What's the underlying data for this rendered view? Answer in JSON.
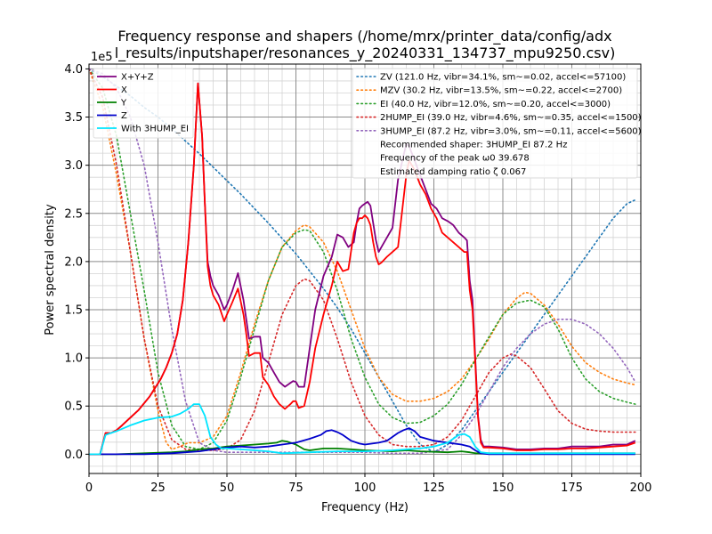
{
  "chart_data": {
    "type": "line",
    "title_line1": "Frequency response and shapers (/home/mrx/printer_data/config/adx",
    "title_line2": "l_results/inputshaper/resonances_y_20240331_134737_mpu9250.csv)",
    "xlabel": "Frequency (Hz)",
    "ylabel": "Power spectral density",
    "y_offset_text": "1e5",
    "xlim": [
      0,
      200
    ],
    "ylim": [
      -0.2,
      4.05
    ],
    "y_scale": 100000,
    "x_ticks": [
      0,
      25,
      50,
      75,
      100,
      125,
      150,
      175,
      200
    ],
    "y_ticks": [
      0.0,
      0.5,
      1.0,
      1.5,
      2.0,
      2.5,
      3.0,
      3.5,
      4.0
    ],
    "x_minor_step": 5,
    "y_minor_step": 0.125,
    "grid": "major and minor",
    "legend_left_position": "upper left",
    "legend_right_position": "upper right",
    "series": [
      {
        "name": "X+Y+Z",
        "color": "#800080",
        "style": "solid",
        "x": [
          0,
          4,
          6,
          8,
          10,
          12,
          15,
          18,
          22,
          26,
          28,
          30,
          32,
          34,
          36,
          38,
          39.5,
          41,
          42,
          43,
          44,
          45,
          47,
          49,
          50,
          52,
          54,
          56,
          57,
          58,
          60,
          62,
          63,
          65,
          67,
          69,
          71,
          73,
          74,
          75,
          76,
          78,
          80,
          82,
          85,
          88,
          90,
          92,
          94,
          96,
          97,
          98,
          99,
          100,
          101,
          102,
          103,
          104,
          105,
          106,
          108,
          110,
          112,
          114,
          115,
          116,
          118,
          120,
          122,
          124,
          126,
          128,
          130,
          132,
          134,
          136,
          137,
          138,
          139,
          140,
          141,
          142,
          143,
          145,
          150,
          155,
          160,
          165,
          170,
          175,
          180,
          185,
          190,
          195,
          198
        ],
        "y": [
          0,
          0,
          0.22,
          0.22,
          0.25,
          0.3,
          0.38,
          0.46,
          0.6,
          0.78,
          0.9,
          1.05,
          1.25,
          1.6,
          2.2,
          3.0,
          3.85,
          3.3,
          2.6,
          2.0,
          1.85,
          1.75,
          1.65,
          1.5,
          1.55,
          1.7,
          1.88,
          1.6,
          1.4,
          1.2,
          1.22,
          1.22,
          1.0,
          0.95,
          0.85,
          0.75,
          0.7,
          0.74,
          0.76,
          0.75,
          0.7,
          0.7,
          1.1,
          1.5,
          1.85,
          2.05,
          2.28,
          2.25,
          2.15,
          2.2,
          2.4,
          2.55,
          2.58,
          2.6,
          2.62,
          2.58,
          2.4,
          2.22,
          2.1,
          2.15,
          2.25,
          2.35,
          2.85,
          3.1,
          3.22,
          3.2,
          3.05,
          2.9,
          2.75,
          2.6,
          2.55,
          2.45,
          2.42,
          2.38,
          2.3,
          2.25,
          2.22,
          1.8,
          1.6,
          1.0,
          0.4,
          0.15,
          0.08,
          0.08,
          0.07,
          0.05,
          0.05,
          0.06,
          0.06,
          0.08,
          0.08,
          0.08,
          0.1,
          0.1,
          0.14
        ]
      },
      {
        "name": "X",
        "color": "#ff0000",
        "style": "solid",
        "x": [
          0,
          4,
          6,
          8,
          10,
          12,
          15,
          18,
          22,
          26,
          28,
          30,
          32,
          34,
          36,
          38,
          39.5,
          41,
          42,
          43,
          44,
          45,
          47,
          49,
          50,
          52,
          54,
          56,
          57,
          58,
          60,
          62,
          63,
          65,
          67,
          69,
          71,
          73,
          74,
          75,
          76,
          78,
          80,
          82,
          85,
          88,
          90,
          92,
          94,
          96,
          97,
          98,
          99,
          100,
          101,
          102,
          103,
          104,
          105,
          106,
          108,
          110,
          112,
          114,
          115,
          116,
          118,
          120,
          122,
          124,
          126,
          128,
          130,
          132,
          134,
          136,
          137,
          138,
          139,
          140,
          141,
          142,
          143,
          145,
          150,
          155,
          160,
          165,
          170,
          175,
          180,
          185,
          190,
          195,
          198
        ],
        "y": [
          0,
          0,
          0.22,
          0.22,
          0.25,
          0.3,
          0.38,
          0.46,
          0.6,
          0.78,
          0.9,
          1.05,
          1.25,
          1.6,
          2.2,
          3.0,
          3.85,
          3.3,
          2.6,
          1.95,
          1.75,
          1.65,
          1.55,
          1.38,
          1.45,
          1.58,
          1.72,
          1.45,
          1.25,
          1.02,
          1.05,
          1.05,
          0.8,
          0.72,
          0.6,
          0.52,
          0.47,
          0.52,
          0.55,
          0.55,
          0.48,
          0.5,
          0.75,
          1.1,
          1.45,
          1.75,
          2.0,
          1.9,
          1.92,
          2.3,
          2.4,
          2.45,
          2.45,
          2.48,
          2.45,
          2.38,
          2.2,
          2.05,
          1.97,
          1.99,
          2.05,
          2.1,
          2.15,
          2.65,
          2.9,
          3.05,
          2.95,
          2.8,
          2.7,
          2.55,
          2.45,
          2.3,
          2.25,
          2.2,
          2.15,
          2.1,
          2.1,
          1.7,
          1.5,
          0.95,
          0.38,
          0.12,
          0.07,
          0.07,
          0.06,
          0.04,
          0.04,
          0.05,
          0.05,
          0.06,
          0.06,
          0.07,
          0.08,
          0.09,
          0.12
        ]
      },
      {
        "name": "Y",
        "color": "#008000",
        "style": "solid",
        "x": [
          0,
          10,
          20,
          30,
          35,
          40,
          45,
          50,
          55,
          60,
          65,
          68,
          70,
          72,
          75,
          78,
          80,
          85,
          90,
          95,
          100,
          110,
          115,
          120,
          130,
          135,
          138,
          140,
          145,
          160,
          180,
          198
        ],
        "y": [
          0,
          0.0,
          0.01,
          0.02,
          0.03,
          0.05,
          0.06,
          0.08,
          0.09,
          0.1,
          0.11,
          0.12,
          0.14,
          0.13,
          0.1,
          0.05,
          0.04,
          0.06,
          0.06,
          0.05,
          0.04,
          0.03,
          0.04,
          0.03,
          0.02,
          0.03,
          0.02,
          0.01,
          0.01,
          0.01,
          0.01,
          0.01
        ]
      },
      {
        "name": "Z",
        "color": "#0000cc",
        "style": "solid",
        "x": [
          0,
          10,
          20,
          30,
          35,
          40,
          45,
          50,
          55,
          60,
          65,
          70,
          75,
          80,
          84,
          86,
          88,
          90,
          92,
          95,
          98,
          100,
          105,
          108,
          110,
          112,
          114,
          116,
          118,
          120,
          125,
          130,
          135,
          138,
          140,
          142,
          145,
          160,
          180,
          198
        ],
        "y": [
          0,
          0.0,
          0.0,
          0.01,
          0.02,
          0.03,
          0.05,
          0.07,
          0.08,
          0.07,
          0.08,
          0.1,
          0.12,
          0.16,
          0.2,
          0.24,
          0.25,
          0.23,
          0.2,
          0.14,
          0.11,
          0.1,
          0.12,
          0.14,
          0.18,
          0.22,
          0.25,
          0.27,
          0.24,
          0.18,
          0.14,
          0.12,
          0.1,
          0.08,
          0.04,
          0.01,
          0.0,
          0.0,
          0.0,
          0.0
        ]
      },
      {
        "name": "With 3HUMP_EI",
        "color": "#00e5ff",
        "style": "solid",
        "x": [
          0,
          4,
          6,
          8,
          10,
          15,
          20,
          25,
          30,
          33,
          36,
          38,
          40,
          42,
          44,
          46,
          48,
          50,
          55,
          60,
          65,
          70,
          80,
          90,
          100,
          110,
          120,
          125,
          130,
          132,
          134,
          136,
          138,
          140,
          142,
          145,
          160,
          180,
          198
        ],
        "y": [
          0,
          0,
          0.2,
          0.22,
          0.24,
          0.3,
          0.35,
          0.38,
          0.39,
          0.42,
          0.47,
          0.52,
          0.52,
          0.4,
          0.18,
          0.1,
          0.06,
          0.06,
          0.05,
          0.04,
          0.03,
          0.01,
          0.02,
          0.03,
          0.03,
          0.04,
          0.06,
          0.08,
          0.12,
          0.16,
          0.2,
          0.21,
          0.18,
          0.08,
          0.02,
          0.01,
          0.01,
          0.01,
          0.01
        ]
      }
    ],
    "shapers": [
      {
        "name": "ZV (121.0 Hz, vibr=34.1%, sm~=0.02, accel<=57100)",
        "color": "#1f77b4",
        "style": "dotted",
        "x": [
          0,
          5,
          10,
          15,
          20,
          25,
          30,
          35,
          40,
          45,
          50,
          55,
          60,
          65,
          70,
          75,
          80,
          85,
          90,
          95,
          100,
          105,
          110,
          115,
          120,
          125,
          130,
          135,
          140,
          145,
          150,
          155,
          160,
          165,
          170,
          175,
          180,
          185,
          190,
          195,
          198
        ],
        "y": [
          4.0,
          3.92,
          3.82,
          3.72,
          3.6,
          3.5,
          3.38,
          3.25,
          3.12,
          2.98,
          2.84,
          2.7,
          2.55,
          2.4,
          2.24,
          2.08,
          1.9,
          1.72,
          1.52,
          1.3,
          1.05,
          0.8,
          0.55,
          0.3,
          0.1,
          0.02,
          0.1,
          0.25,
          0.45,
          0.65,
          0.85,
          1.05,
          1.25,
          1.45,
          1.65,
          1.85,
          2.05,
          2.25,
          2.45,
          2.6,
          2.64
        ]
      },
      {
        "name": "MZV (30.2 Hz, vibr=13.5%, sm~=0.22, accel<=2700)",
        "color": "#ff7f0e",
        "style": "dotted",
        "x": [
          0,
          5,
          10,
          15,
          20,
          25,
          28,
          30,
          33,
          36,
          40,
          45,
          50,
          55,
          60,
          65,
          70,
          75,
          78,
          80,
          85,
          90,
          95,
          100,
          105,
          110,
          115,
          120,
          125,
          130,
          135,
          140,
          145,
          150,
          155,
          158,
          160,
          165,
          170,
          175,
          180,
          185,
          190,
          195,
          198
        ],
        "y": [
          4.0,
          3.6,
          2.9,
          2.1,
          1.2,
          0.45,
          0.12,
          0.05,
          0.08,
          0.12,
          0.12,
          0.18,
          0.4,
          0.85,
          1.35,
          1.8,
          2.15,
          2.32,
          2.38,
          2.36,
          2.2,
          1.9,
          1.5,
          1.1,
          0.8,
          0.62,
          0.55,
          0.55,
          0.58,
          0.65,
          0.78,
          0.98,
          1.2,
          1.45,
          1.62,
          1.68,
          1.67,
          1.55,
          1.35,
          1.12,
          0.95,
          0.85,
          0.78,
          0.74,
          0.72
        ]
      },
      {
        "name": "EI (40.0 Hz, vibr=12.0%, sm~=0.20, accel<=3000)",
        "color": "#2ca02c",
        "style": "dotted",
        "x": [
          0,
          5,
          10,
          15,
          20,
          25,
          30,
          35,
          40,
          45,
          50,
          55,
          60,
          65,
          70,
          75,
          78,
          80,
          85,
          90,
          95,
          100,
          105,
          110,
          115,
          120,
          125,
          130,
          135,
          140,
          145,
          150,
          155,
          160,
          165,
          170,
          175,
          180,
          185,
          190,
          195,
          198
        ],
        "y": [
          4.0,
          3.8,
          3.3,
          2.5,
          1.7,
          0.85,
          0.3,
          0.08,
          0.05,
          0.12,
          0.35,
          0.8,
          1.3,
          1.8,
          2.15,
          2.3,
          2.33,
          2.32,
          2.1,
          1.7,
          1.2,
          0.8,
          0.52,
          0.38,
          0.32,
          0.33,
          0.4,
          0.52,
          0.72,
          0.98,
          1.22,
          1.45,
          1.57,
          1.6,
          1.53,
          1.3,
          1.0,
          0.78,
          0.65,
          0.58,
          0.54,
          0.52
        ]
      },
      {
        "name": "2HUMP_EI (39.0 Hz, vibr=4.6%, sm~=0.35, accel<=1500)",
        "color": "#d62728",
        "style": "dotted",
        "x": [
          0,
          5,
          10,
          15,
          20,
          25,
          30,
          35,
          40,
          45,
          50,
          55,
          60,
          65,
          70,
          75,
          78,
          80,
          85,
          90,
          95,
          100,
          105,
          110,
          115,
          120,
          125,
          130,
          135,
          140,
          145,
          150,
          153,
          155,
          160,
          165,
          170,
          175,
          180,
          185,
          190,
          195,
          198
        ],
        "y": [
          4.0,
          3.7,
          3.0,
          2.1,
          1.2,
          0.5,
          0.15,
          0.05,
          0.04,
          0.04,
          0.06,
          0.15,
          0.45,
          0.95,
          1.45,
          1.75,
          1.82,
          1.8,
          1.6,
          1.2,
          0.75,
          0.4,
          0.2,
          0.1,
          0.08,
          0.08,
          0.1,
          0.18,
          0.35,
          0.6,
          0.85,
          1.0,
          1.04,
          1.02,
          0.9,
          0.68,
          0.45,
          0.32,
          0.26,
          0.24,
          0.23,
          0.23,
          0.23
        ]
      },
      {
        "name": "3HUMP_EI (87.2 Hz, vibr=3.0%, sm~=0.11, accel<=5600)",
        "color": "#9467bd",
        "style": "dotted",
        "x": [
          0,
          5,
          10,
          15,
          20,
          25,
          30,
          35,
          40,
          45,
          50,
          55,
          60,
          65,
          70,
          75,
          80,
          85,
          90,
          95,
          100,
          110,
          120,
          130,
          135,
          140,
          145,
          150,
          155,
          160,
          165,
          170,
          175,
          180,
          185,
          190,
          195,
          198
        ],
        "y": [
          4.0,
          3.95,
          3.8,
          3.5,
          3.0,
          2.2,
          1.3,
          0.55,
          0.12,
          0.04,
          0.02,
          0.02,
          0.02,
          0.02,
          0.02,
          0.02,
          0.02,
          0.02,
          0.02,
          0.02,
          0.02,
          0.01,
          0.01,
          0.05,
          0.2,
          0.4,
          0.65,
          0.9,
          1.1,
          1.25,
          1.35,
          1.4,
          1.4,
          1.35,
          1.25,
          1.1,
          0.9,
          0.75
        ]
      }
    ],
    "info_lines": [
      "Recommended shaper: 3HUMP_EI 87.2 Hz",
      "Frequency of the peak ω0 39.678",
      "Estimated damping ratio ζ 0.067"
    ]
  }
}
